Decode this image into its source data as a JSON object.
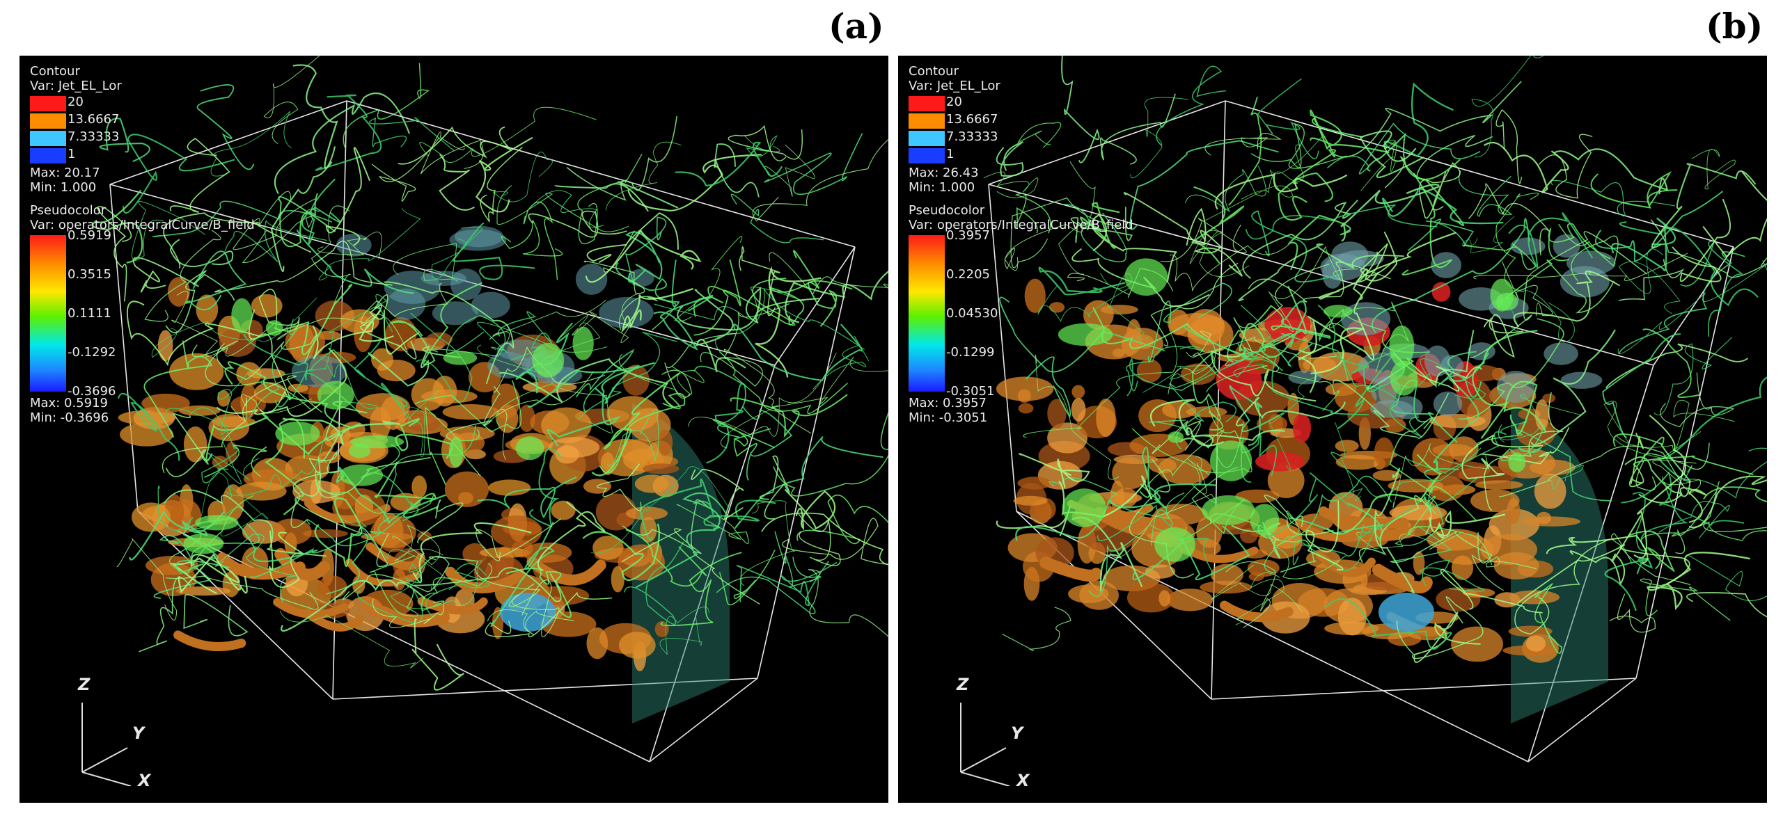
{
  "panels": [
    {
      "tag": "(a)",
      "contour": {
        "title": "Contour",
        "var": "Var: Jet_EL_Lor",
        "levels": [
          {
            "label": "20",
            "color": "#ff1a1a"
          },
          {
            "label": "13.6667",
            "color": "#ff8c00"
          },
          {
            "label": "7.33333",
            "color": "#3ec8ff"
          },
          {
            "label": "1",
            "color": "#1a3cff"
          }
        ],
        "max": "Max: 20.17",
        "min": "Min: 1.000"
      },
      "pseudocolor": {
        "title": "Pseudocolor",
        "var": "Var: operators/IntegralCurve/B_field",
        "ticks": [
          "0.5919",
          "0.3515",
          "0.1111",
          "-0.1292",
          "-0.3696"
        ],
        "max": "Max: 0.5919",
        "min": "Min: -0.3696"
      },
      "axes": {
        "z": "Z",
        "y": "Y",
        "x": "X"
      },
      "render_tint": "#e0902a"
    },
    {
      "tag": "(b)",
      "contour": {
        "title": "Contour",
        "var": "Var: Jet_EL_Lor",
        "levels": [
          {
            "label": "20",
            "color": "#ff1a1a"
          },
          {
            "label": "13.6667",
            "color": "#ff8c00"
          },
          {
            "label": "7.33333",
            "color": "#3ec8ff"
          },
          {
            "label": "1",
            "color": "#1a3cff"
          }
        ],
        "max": "Max: 26.43",
        "min": "Min: 1.000"
      },
      "pseudocolor": {
        "title": "Pseudocolor",
        "var": "Var: operators/IntegralCurve/B_field",
        "ticks": [
          "0.3957",
          "0.2205",
          "0.04530",
          "-0.1299",
          "-0.3051"
        ],
        "max": "Max: 0.3957",
        "min": "Min: -0.3051"
      },
      "axes": {
        "z": "Z",
        "y": "Y",
        "x": "X"
      },
      "render_tint": "#d8862a"
    }
  ]
}
